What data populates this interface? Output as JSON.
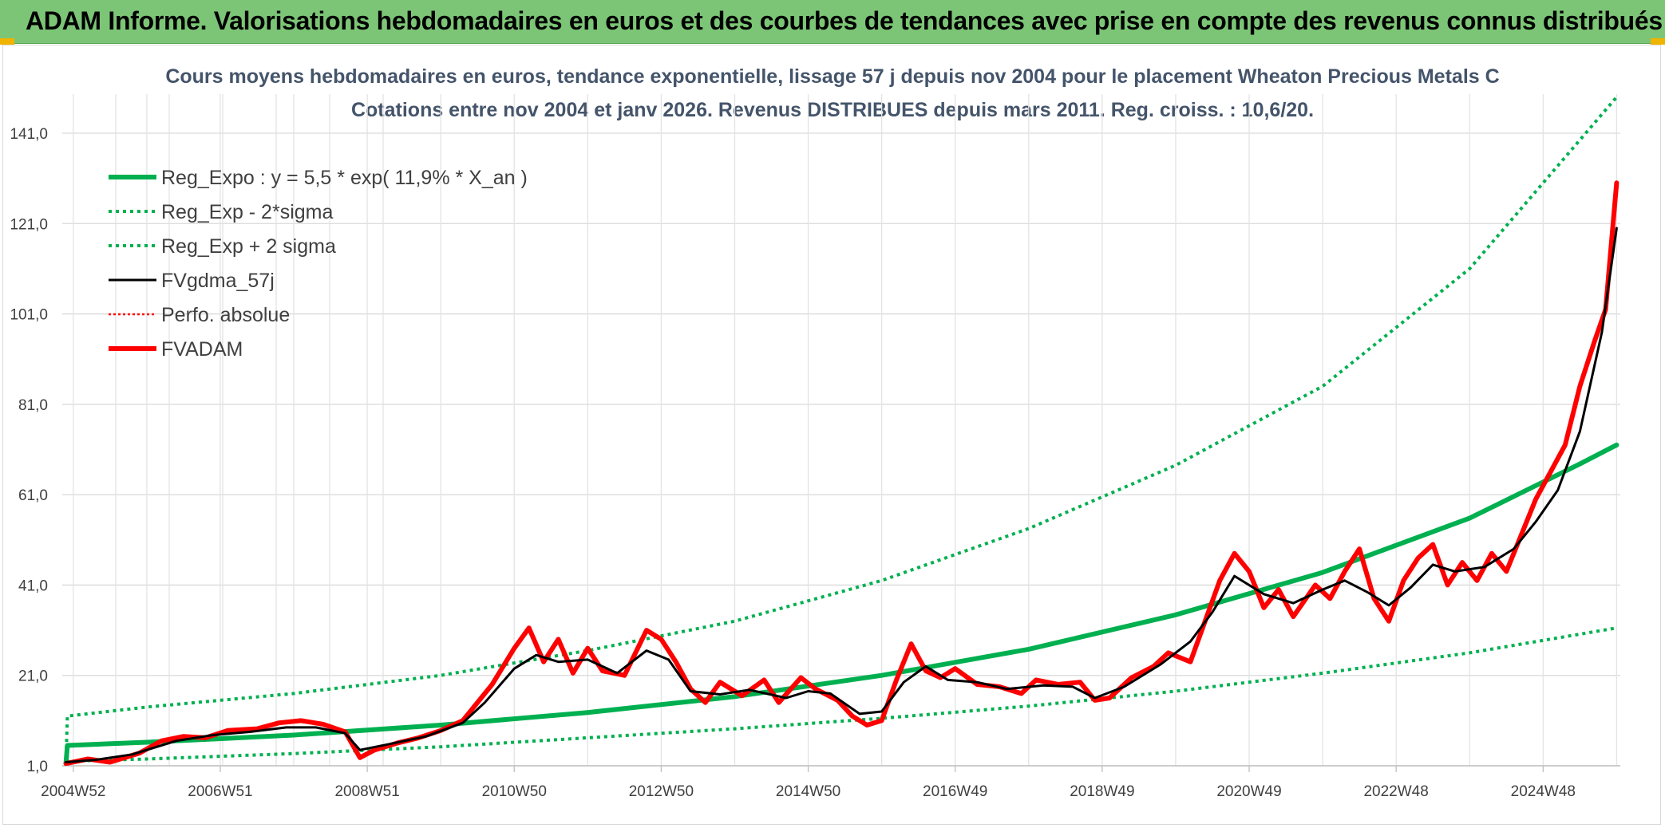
{
  "banner": {
    "title": "ADAM Informe. Valorisations hebdomadaires en euros et des courbes de tendances avec prise en compte des revenus connus distribués",
    "background": "#7cc576"
  },
  "chart_data": {
    "type": "line",
    "title": "Cours moyens hebdomadaires en euros, tendance exponentielle, lissage 57 j depuis nov 2004 pour le placement Wheaton Precious Metals C",
    "subtitle": "Cotations entre nov 2004 et janv 2026. Revenus DISTRIBUES depuis mars 2011. Reg. croiss. : 10,6/20.",
    "xlabel": "",
    "ylabel": "",
    "xlim": [
      2004.85,
      2026.05
    ],
    "ylim": [
      1.0,
      141.0
    ],
    "yticks": [
      "1,0",
      "21,0",
      "41,0",
      "61,0",
      "81,0",
      "101,0",
      "121,0",
      "141,0"
    ],
    "xticks": [
      {
        "year": 2005.0,
        "label": "2004W52"
      },
      {
        "year": 2007.0,
        "label": "2006W51"
      },
      {
        "year": 2009.0,
        "label": "2008W51"
      },
      {
        "year": 2011.0,
        "label": "2010W50"
      },
      {
        "year": 2013.0,
        "label": "2012W50"
      },
      {
        "year": 2015.0,
        "label": "2014W50"
      },
      {
        "year": 2017.0,
        "label": "2016W49"
      },
      {
        "year": 2019.0,
        "label": "2018W49"
      },
      {
        "year": 2021.0,
        "label": "2020W49"
      },
      {
        "year": 2023.0,
        "label": "2022W48"
      },
      {
        "year": 2025.0,
        "label": "2024W48"
      }
    ],
    "legend_position": "top-left",
    "series": [
      {
        "name": "Reg_Expo : y = 5,5 * exp( 11,9% *  X_an )",
        "color": "#00b050",
        "style": "solid-thick",
        "points": [
          [
            2004.9,
            1.5
          ],
          [
            2004.92,
            5.5
          ],
          [
            2006,
            6.2
          ],
          [
            2008,
            7.8
          ],
          [
            2010,
            10.0
          ],
          [
            2012,
            12.8
          ],
          [
            2014,
            16.3
          ],
          [
            2016,
            21.0
          ],
          [
            2018,
            26.8
          ],
          [
            2020,
            34.4
          ],
          [
            2022,
            43.8
          ],
          [
            2024,
            55.8
          ],
          [
            2025.5,
            67.8
          ],
          [
            2026.0,
            72.0
          ]
        ]
      },
      {
        "name": "Reg_Exp - 2*sigma",
        "color": "#00b050",
        "style": "dotted",
        "points": [
          [
            2004.9,
            2.0
          ],
          [
            2006,
            2.5
          ],
          [
            2008,
            3.7
          ],
          [
            2010,
            5.2
          ],
          [
            2012,
            7.2
          ],
          [
            2014,
            9.2
          ],
          [
            2016,
            11.5
          ],
          [
            2018,
            14.2
          ],
          [
            2020,
            17.5
          ],
          [
            2022,
            21.5
          ],
          [
            2024,
            26.0
          ],
          [
            2026.0,
            31.5
          ]
        ]
      },
      {
        "name": "Reg_Exp + 2 sigma",
        "color": "#00b050",
        "style": "dotted",
        "points": [
          [
            2004.9,
            1.5
          ],
          [
            2004.92,
            12.0
          ],
          [
            2006,
            14.0
          ],
          [
            2008,
            17.0
          ],
          [
            2010,
            21.0
          ],
          [
            2012,
            26.5
          ],
          [
            2014,
            33.0
          ],
          [
            2016,
            42.0
          ],
          [
            2018,
            53.5
          ],
          [
            2020,
            67.5
          ],
          [
            2022,
            85.0
          ],
          [
            2024,
            111.0
          ],
          [
            2026.0,
            149.0
          ]
        ]
      },
      {
        "name": "FVgdma_57j",
        "color": "#000000",
        "style": "solid",
        "points": [
          [
            2004.9,
            1.8
          ],
          [
            2005.3,
            2.3
          ],
          [
            2005.8,
            3.5
          ],
          [
            2006.4,
            6.5
          ],
          [
            2006.9,
            7.8
          ],
          [
            2007.4,
            8.5
          ],
          [
            2007.9,
            9.5
          ],
          [
            2008.3,
            9.5
          ],
          [
            2008.7,
            8.2
          ],
          [
            2008.9,
            4.5
          ],
          [
            2009.3,
            5.8
          ],
          [
            2009.8,
            7.5
          ],
          [
            2010.3,
            10.5
          ],
          [
            2010.6,
            15.0
          ],
          [
            2011.0,
            22.5
          ],
          [
            2011.3,
            25.5
          ],
          [
            2011.6,
            24.0
          ],
          [
            2012.0,
            24.5
          ],
          [
            2012.4,
            21.5
          ],
          [
            2012.8,
            26.5
          ],
          [
            2013.1,
            24.5
          ],
          [
            2013.4,
            17.5
          ],
          [
            2013.8,
            16.8
          ],
          [
            2014.2,
            17.8
          ],
          [
            2014.7,
            16.0
          ],
          [
            2015.0,
            17.5
          ],
          [
            2015.3,
            17.0
          ],
          [
            2015.7,
            12.5
          ],
          [
            2016.0,
            13.0
          ],
          [
            2016.3,
            19.5
          ],
          [
            2016.6,
            23.0
          ],
          [
            2016.9,
            20.0
          ],
          [
            2017.3,
            19.5
          ],
          [
            2017.7,
            18.0
          ],
          [
            2018.2,
            18.8
          ],
          [
            2018.6,
            18.5
          ],
          [
            2018.9,
            16.0
          ],
          [
            2019.3,
            18.5
          ],
          [
            2019.8,
            23.5
          ],
          [
            2020.2,
            28.5
          ],
          [
            2020.5,
            35.0
          ],
          [
            2020.8,
            43.0
          ],
          [
            2021.2,
            39.0
          ],
          [
            2021.6,
            37.0
          ],
          [
            2022.0,
            40.0
          ],
          [
            2022.3,
            42.0
          ],
          [
            2022.6,
            39.5
          ],
          [
            2022.9,
            36.5
          ],
          [
            2023.2,
            40.5
          ],
          [
            2023.5,
            45.5
          ],
          [
            2023.8,
            44.0
          ],
          [
            2024.2,
            45.0
          ],
          [
            2024.6,
            49.0
          ],
          [
            2024.9,
            55.0
          ],
          [
            2025.2,
            62.0
          ],
          [
            2025.5,
            75.0
          ],
          [
            2025.8,
            97.0
          ],
          [
            2026.0,
            120.0
          ]
        ]
      },
      {
        "name": "Perfo. absolue",
        "color": "#ff0000",
        "style": "dotted",
        "points": []
      },
      {
        "name": "FVADAM",
        "color": "#ff0000",
        "style": "solid-thick",
        "points": [
          [
            2004.9,
            1.5
          ],
          [
            2005.2,
            2.5
          ],
          [
            2005.5,
            1.8
          ],
          [
            2005.9,
            3.8
          ],
          [
            2006.2,
            6.5
          ],
          [
            2006.5,
            7.5
          ],
          [
            2006.8,
            7.2
          ],
          [
            2007.1,
            8.8
          ],
          [
            2007.5,
            9.2
          ],
          [
            2007.8,
            10.5
          ],
          [
            2008.1,
            11.0
          ],
          [
            2008.4,
            10.2
          ],
          [
            2008.7,
            8.5
          ],
          [
            2008.9,
            2.8
          ],
          [
            2009.1,
            4.5
          ],
          [
            2009.4,
            6.0
          ],
          [
            2009.7,
            7.2
          ],
          [
            2010.0,
            8.8
          ],
          [
            2010.3,
            11.0
          ],
          [
            2010.5,
            15.0
          ],
          [
            2010.7,
            19.0
          ],
          [
            2011.0,
            27.0
          ],
          [
            2011.2,
            31.5
          ],
          [
            2011.4,
            24.0
          ],
          [
            2011.6,
            29.0
          ],
          [
            2011.8,
            21.5
          ],
          [
            2012.0,
            27.0
          ],
          [
            2012.2,
            22.0
          ],
          [
            2012.5,
            21.0
          ],
          [
            2012.8,
            31.0
          ],
          [
            2013.0,
            29.0
          ],
          [
            2013.2,
            24.0
          ],
          [
            2013.4,
            18.0
          ],
          [
            2013.6,
            15.0
          ],
          [
            2013.8,
            19.5
          ],
          [
            2014.1,
            16.5
          ],
          [
            2014.4,
            20.0
          ],
          [
            2014.6,
            15.0
          ],
          [
            2014.9,
            20.5
          ],
          [
            2015.1,
            18.0
          ],
          [
            2015.4,
            15.5
          ],
          [
            2015.6,
            12.0
          ],
          [
            2015.8,
            10.0
          ],
          [
            2016.0,
            11.0
          ],
          [
            2016.2,
            20.0
          ],
          [
            2016.4,
            28.0
          ],
          [
            2016.6,
            22.0
          ],
          [
            2016.8,
            20.5
          ],
          [
            2017.0,
            22.5
          ],
          [
            2017.3,
            19.0
          ],
          [
            2017.6,
            18.5
          ],
          [
            2017.9,
            17.0
          ],
          [
            2018.1,
            20.0
          ],
          [
            2018.4,
            19.0
          ],
          [
            2018.7,
            19.5
          ],
          [
            2018.9,
            15.5
          ],
          [
            2019.1,
            16.0
          ],
          [
            2019.4,
            20.5
          ],
          [
            2019.7,
            23.0
          ],
          [
            2019.9,
            26.0
          ],
          [
            2020.2,
            24.0
          ],
          [
            2020.4,
            33.0
          ],
          [
            2020.6,
            42.0
          ],
          [
            2020.8,
            48.0
          ],
          [
            2021.0,
            44.0
          ],
          [
            2021.2,
            36.0
          ],
          [
            2021.4,
            40.0
          ],
          [
            2021.6,
            34.0
          ],
          [
            2021.9,
            41.0
          ],
          [
            2022.1,
            38.0
          ],
          [
            2022.3,
            44.0
          ],
          [
            2022.5,
            49.0
          ],
          [
            2022.7,
            38.0
          ],
          [
            2022.9,
            33.0
          ],
          [
            2023.1,
            42.0
          ],
          [
            2023.3,
            47.0
          ],
          [
            2023.5,
            50.0
          ],
          [
            2023.7,
            41.0
          ],
          [
            2023.9,
            46.0
          ],
          [
            2024.1,
            42.0
          ],
          [
            2024.3,
            48.0
          ],
          [
            2024.5,
            44.0
          ],
          [
            2024.7,
            52.0
          ],
          [
            2024.9,
            60.0
          ],
          [
            2025.1,
            66.0
          ],
          [
            2025.3,
            72.0
          ],
          [
            2025.5,
            85.0
          ],
          [
            2025.7,
            95.0
          ],
          [
            2025.85,
            102.0
          ],
          [
            2026.0,
            130.0
          ]
        ]
      }
    ]
  }
}
